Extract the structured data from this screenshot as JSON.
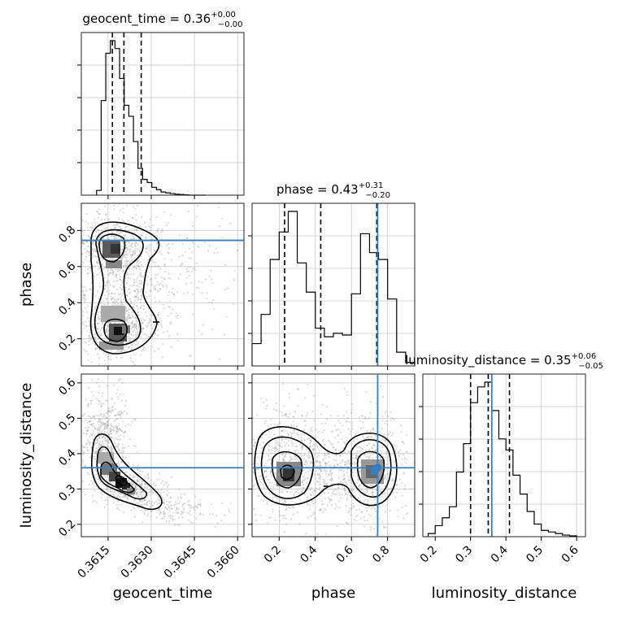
{
  "chart_data": {
    "type": "corner",
    "parameters": [
      "geocent_time",
      "phase",
      "luminosity_distance"
    ],
    "truths": {
      "geocent_time": null,
      "phase": 0.745,
      "luminosity_distance": 0.36
    },
    "marginals": [
      {
        "param": "geocent_time",
        "title": {
          "prefix": "geocent_time = ",
          "median": "0.36",
          "plus": "+0.00",
          "minus": "−0.00"
        },
        "quantiles": [
          0.36165,
          0.36205,
          0.36265
        ],
        "range": [
          0.36057,
          0.36622
        ],
        "bin_edges": [
          0.3611,
          0.36126,
          0.36142,
          0.36158,
          0.36174,
          0.3619,
          0.36206,
          0.36222,
          0.36238,
          0.36254,
          0.3627,
          0.36286,
          0.36302,
          0.36318,
          0.36334,
          0.3635,
          0.36366,
          0.36382,
          0.36398,
          0.36414,
          0.3643,
          0.3649
        ],
        "counts": [
          0.03,
          0.6,
          0.9,
          0.98,
          0.93,
          0.74,
          0.57,
          0.5,
          0.34,
          0.17,
          0.1,
          0.08,
          0.05,
          0.035,
          0.02,
          0.015,
          0.01,
          0.006,
          0.004,
          0.002,
          0.0
        ]
      },
      {
        "param": "phase",
        "title": {
          "prefix": "phase = ",
          "median": "0.43",
          "plus": "+0.31",
          "minus": "−0.20"
        },
        "quantiles": [
          0.23,
          0.43,
          0.74
        ],
        "range": [
          0.05,
          0.95
        ],
        "bin_edges": [
          0.05,
          0.1,
          0.15,
          0.2,
          0.25,
          0.3,
          0.35,
          0.4,
          0.45,
          0.5,
          0.55,
          0.6,
          0.65,
          0.7,
          0.75,
          0.8,
          0.85,
          0.9,
          0.95
        ],
        "counts": [
          0.13,
          0.3,
          0.62,
          0.78,
          0.9,
          0.6,
          0.43,
          0.22,
          0.17,
          0.19,
          0.18,
          0.42,
          0.77,
          0.66,
          0.62,
          0.39,
          0.08,
          0.02
        ]
      },
      {
        "param": "luminosity_distance",
        "title": {
          "prefix": "luminosity_distance = ",
          "median": "0.35",
          "plus": "+0.06",
          "minus": "−0.05"
        },
        "quantiles": [
          0.3,
          0.35,
          0.41
        ],
        "range": [
          0.165,
          0.625
        ],
        "bin_edges": [
          0.18,
          0.2,
          0.22,
          0.24,
          0.26,
          0.28,
          0.3,
          0.32,
          0.34,
          0.36,
          0.38,
          0.4,
          0.42,
          0.44,
          0.46,
          0.48,
          0.5,
          0.52,
          0.54,
          0.56,
          0.58,
          0.6
        ],
        "counts": [
          0.02,
          0.07,
          0.12,
          0.19,
          0.41,
          0.59,
          0.85,
          0.95,
          0.98,
          0.8,
          0.62,
          0.55,
          0.39,
          0.27,
          0.16,
          0.08,
          0.04,
          0.03,
          0.02,
          0.01,
          0.005
        ]
      }
    ],
    "ticks": {
      "geocent_time": {
        "values": [
          0.3615,
          0.363,
          0.3645,
          0.366
        ],
        "labels": [
          "0.3615",
          "0.3630",
          "0.3645",
          "0.3660"
        ]
      },
      "phase": {
        "values": [
          0.2,
          0.4,
          0.6,
          0.8
        ],
        "labels": [
          "0.2",
          "0.4",
          "0.6",
          "0.8"
        ]
      },
      "luminosity_distance": {
        "values": [
          0.2,
          0.3,
          0.4,
          0.5,
          0.6
        ],
        "labels": [
          "0.2",
          "0.3",
          "0.4",
          "0.5",
          "0.6"
        ]
      }
    },
    "axis_labels": {
      "x": [
        "geocent_time",
        "phase",
        "luminosity_distance"
      ],
      "y": [
        "phase",
        "luminosity_distance"
      ]
    },
    "grid": true,
    "colors": {
      "hist": "#000000",
      "truth": "#3a7dbf",
      "scatter": "#9a9a9a"
    }
  }
}
